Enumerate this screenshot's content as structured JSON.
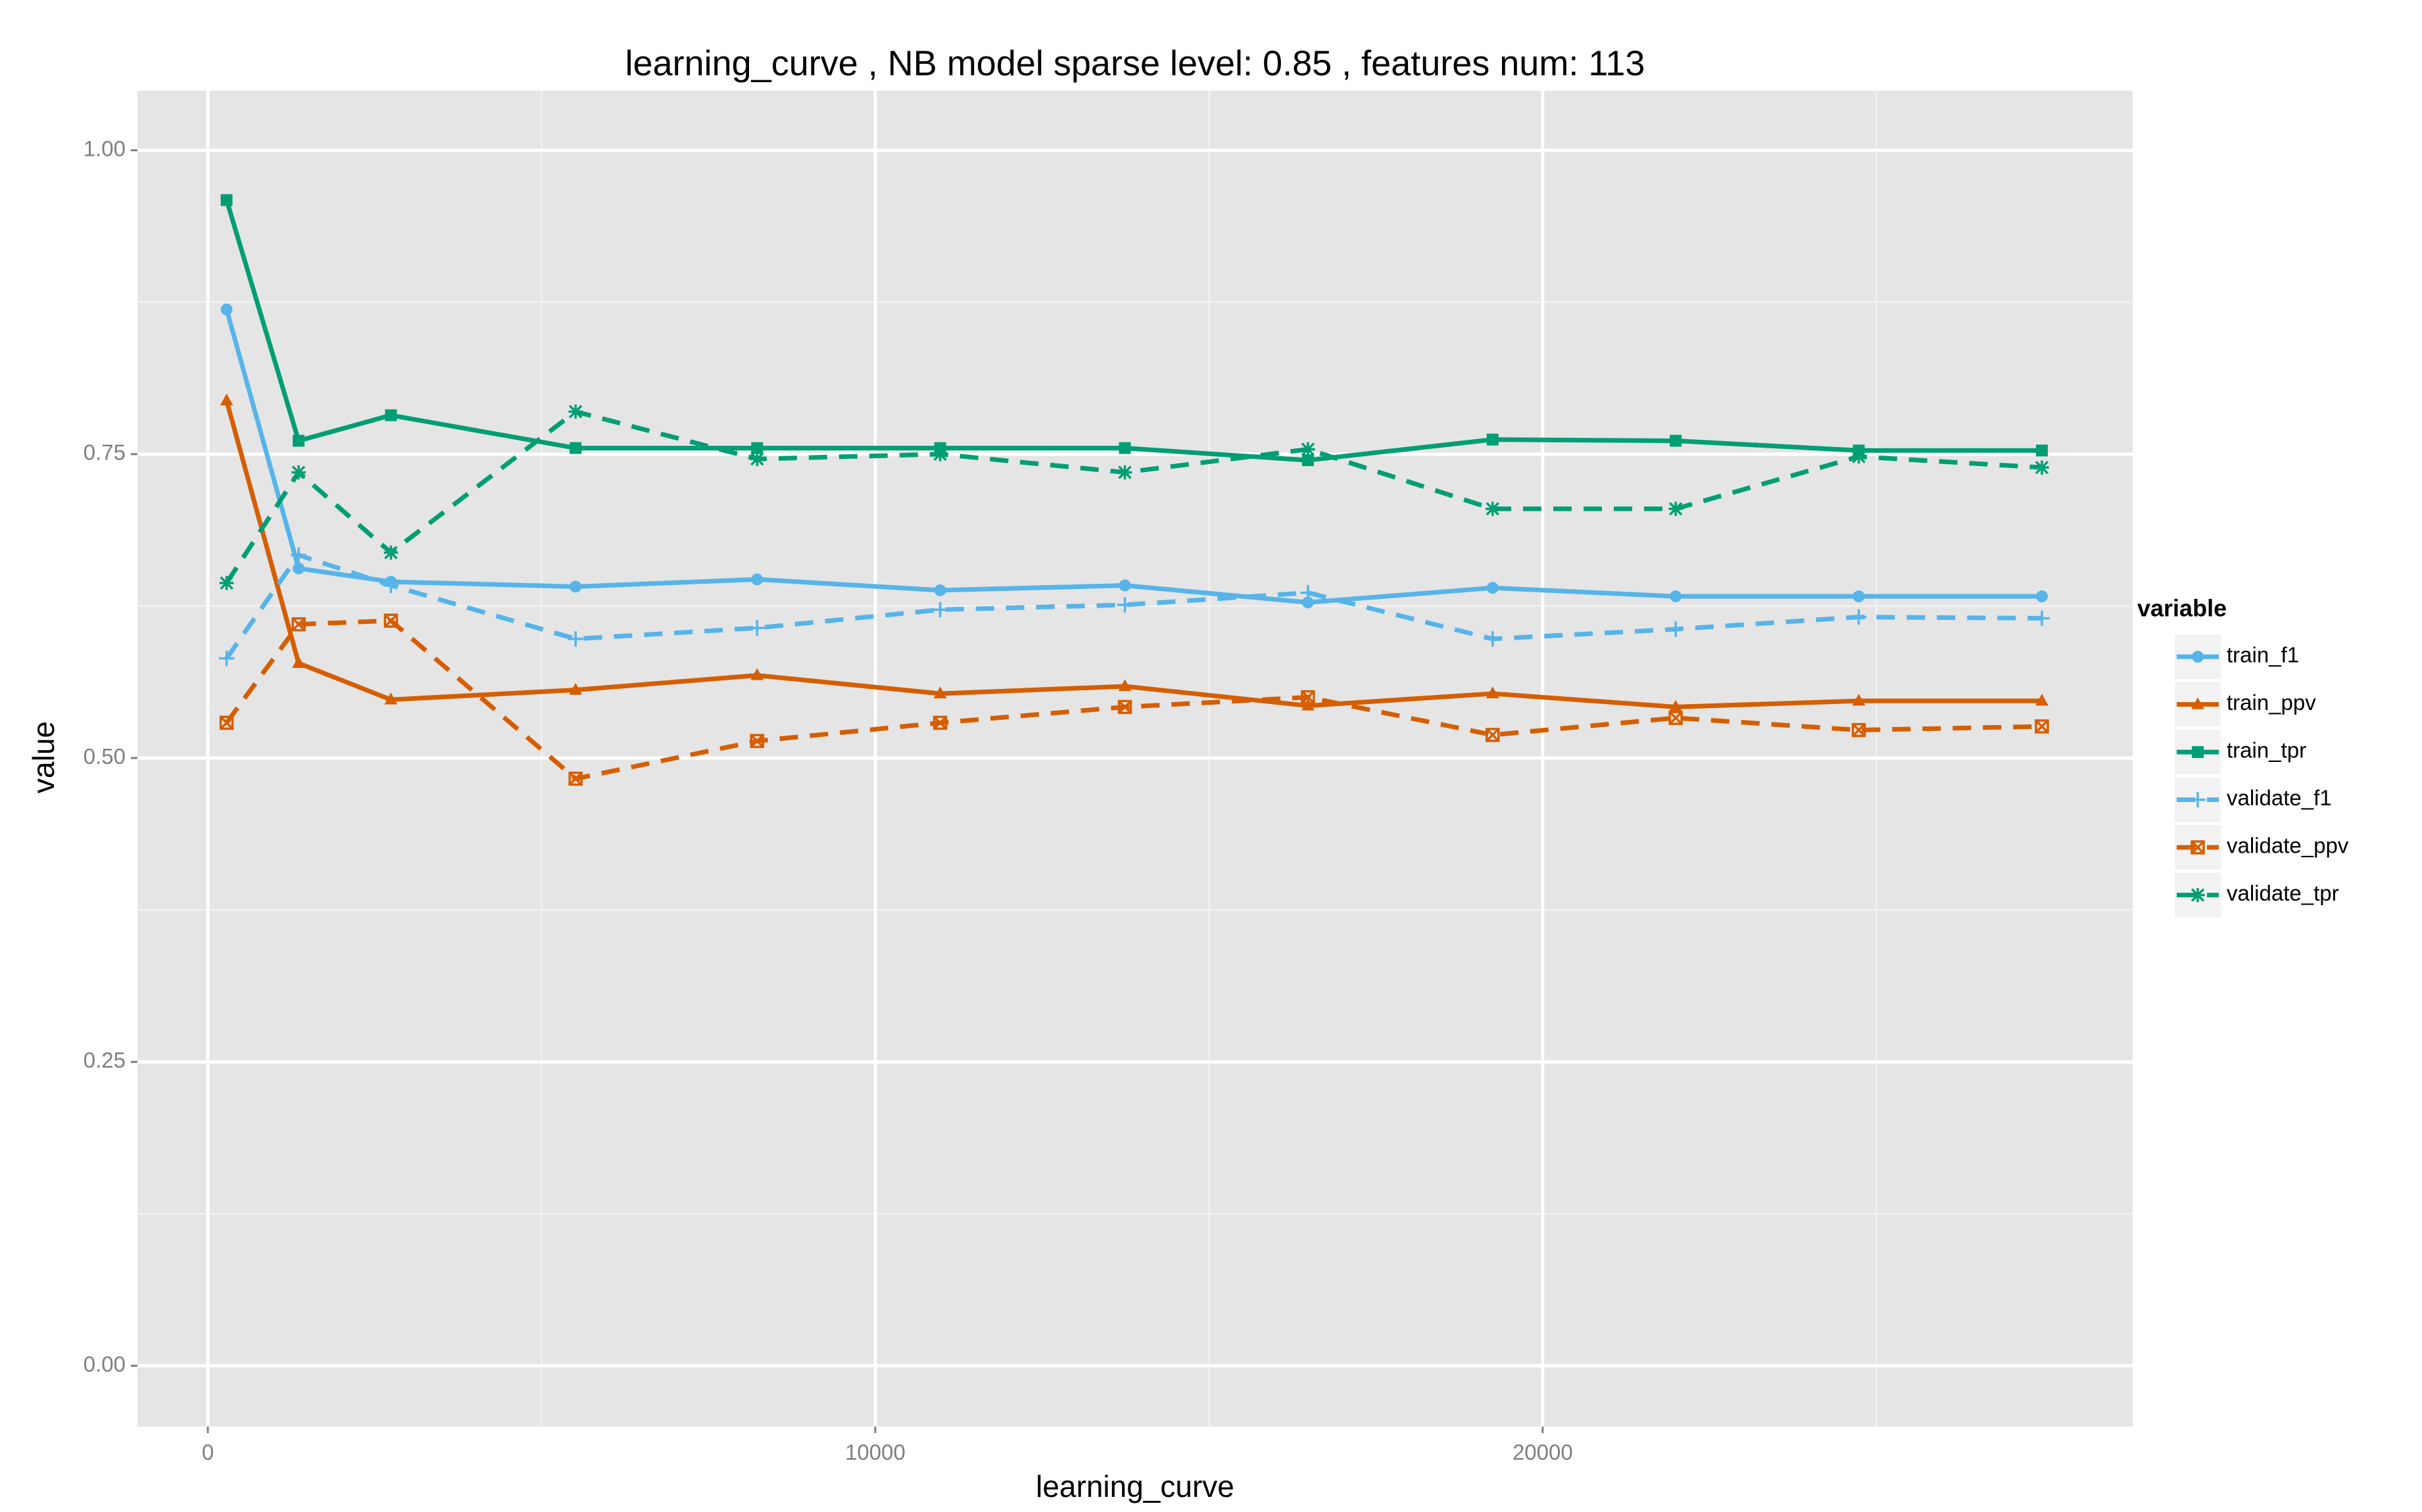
{
  "chart_data": {
    "type": "line",
    "title": "learning_curve ,  NB model sparse level: 0.85 , features num: 113",
    "x_label": "learning_curve",
    "y_label": "value",
    "legend_title": "variable",
    "legend_position": "right",
    "grid": true,
    "x": [
      281,
      1360,
      2743,
      5510,
      8230,
      10973,
      13740,
      16483,
      19250,
      21993,
      24736,
      27480
    ],
    "xlim": [
      -1055,
      28840
    ],
    "xticks": [
      0,
      10000,
      20000
    ],
    "ylim": [
      -0.05,
      1.049
    ],
    "yticks": [
      {
        "value": 0,
        "label": "0.00"
      },
      {
        "value": 0.25,
        "label": "0.25"
      },
      {
        "value": 0.5,
        "label": "0.50"
      },
      {
        "value": 0.75,
        "label": "0.75"
      },
      {
        "value": 1,
        "label": "1.00"
      }
    ],
    "series": [
      {
        "name": "train_f1",
        "color": "#56B4E9",
        "linestyle": "solid",
        "marker": "circle",
        "values": [
          0.869,
          0.656,
          0.645,
          0.641,
          0.647,
          0.638,
          0.642,
          0.628,
          0.64,
          0.633,
          0.633,
          0.633
        ]
      },
      {
        "name": "train_ppv",
        "color": "#D55E00",
        "linestyle": "solid",
        "marker": "triangle",
        "values": [
          0.794,
          0.578,
          0.548,
          0.556,
          0.568,
          0.553,
          0.559,
          0.543,
          0.553,
          0.542,
          0.547,
          0.547
        ]
      },
      {
        "name": "train_tpr",
        "color": "#009E73",
        "linestyle": "solid",
        "marker": "square",
        "values": [
          0.959,
          0.761,
          0.782,
          0.755,
          0.755,
          0.755,
          0.755,
          0.745,
          0.762,
          0.761,
          0.753,
          0.753
        ]
      },
      {
        "name": "validate_f1",
        "color": "#56B4E9",
        "linestyle": "dashed",
        "marker": "plus",
        "values": [
          0.582,
          0.667,
          0.642,
          0.598,
          0.607,
          0.622,
          0.626,
          0.636,
          0.598,
          0.606,
          0.616,
          0.615
        ]
      },
      {
        "name": "validate_ppv",
        "color": "#D55E00",
        "linestyle": "dashed",
        "marker": "boxcross",
        "values": [
          0.529,
          0.61,
          0.613,
          0.483,
          0.514,
          0.529,
          0.542,
          0.55,
          0.519,
          0.533,
          0.523,
          0.526
        ]
      },
      {
        "name": "validate_tpr",
        "color": "#009E73",
        "linestyle": "dashed",
        "marker": "asterisk",
        "values": [
          0.644,
          0.735,
          0.669,
          0.785,
          0.746,
          0.75,
          0.735,
          0.754,
          0.705,
          0.705,
          0.748,
          0.739
        ]
      }
    ]
  }
}
